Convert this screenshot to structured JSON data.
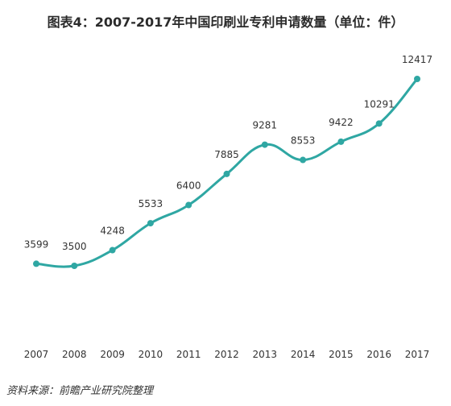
{
  "title": "图表4：2007-2017年中国印刷业专利申请数量（单位：件）",
  "source": "资料来源：前瞻产业研究院整理",
  "colors": {
    "line": "#2fa7a3",
    "label": "#333333",
    "axis": "#333333"
  },
  "chart_data": {
    "type": "line",
    "categories": [
      "2007",
      "2008",
      "2009",
      "2010",
      "2011",
      "2012",
      "2013",
      "2014",
      "2015",
      "2016",
      "2017"
    ],
    "series": [
      {
        "values": [
          3599,
          3500,
          4248,
          5533,
          6400,
          7885,
          9281,
          8553,
          9422,
          10291,
          12417
        ]
      }
    ],
    "smooth": true,
    "grid": false,
    "data_labels": true
  }
}
